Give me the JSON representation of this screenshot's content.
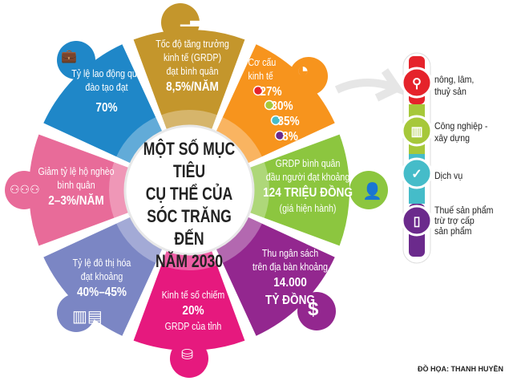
{
  "title": [
    "MỘT SỐ MỤC TIÊU",
    "CỤ THỂ CỦA",
    "SÓC TRĂNG ĐẾN",
    "NĂM 2030"
  ],
  "segments": [
    {
      "id": "growth",
      "color": "#c4962c",
      "lines": [
        "Tốc độ tăng trưởng",
        "kinh tế (GRDP)",
        "đạt bình quân"
      ],
      "value": "8,5%/NĂM",
      "icon": "bar-chart-icon"
    },
    {
      "id": "structure",
      "color": "#f7941d",
      "lines": [
        "Cơ cấu",
        "kinh tế"
      ],
      "values": [
        "27%",
        "30%",
        "35%",
        "8%"
      ],
      "icon": "pie-chart-icon"
    },
    {
      "id": "grdp-per-capita",
      "color": "#8cc63f",
      "lines": [
        "GRDP bình quân",
        "đầu người đạt khoảng"
      ],
      "value": "124 TRIỆU ĐỒNG",
      "note": "(giá hiện hành)",
      "icon": "person-icon"
    },
    {
      "id": "budget",
      "color": "#93278f",
      "lines": [
        "Thu ngân sách",
        "trên địa bàn khoảng"
      ],
      "value": "14.000",
      "value2": "TỶ ĐỒNG",
      "icon": "dollar-icon"
    },
    {
      "id": "digital-economy",
      "color": "#e6197e",
      "lines": [
        "Kinh tế số chiếm"
      ],
      "value": "20%",
      "note": "GRDP của tỉnh",
      "icon": "coins-icon"
    },
    {
      "id": "urbanization",
      "color": "#7b86c4",
      "lines": [
        "Tỷ lệ đô thị hóa",
        "đạt khoảng"
      ],
      "value": "40%–45%",
      "icon": "buildings-icon"
    },
    {
      "id": "poverty",
      "color": "#e86b99",
      "lines": [
        "Giảm tỷ lệ hộ nghèo",
        "bình quân"
      ],
      "value": "2–3%/NĂM",
      "icon": "people-icon"
    },
    {
      "id": "labor",
      "color": "#1f87c8",
      "lines": [
        "Tỷ lệ lao động qua",
        "đào tạo đạt"
      ],
      "value": "70%",
      "icon": "briefcase-icon"
    }
  ],
  "legend": [
    {
      "label": [
        "nông, lâm,",
        "thuỷ sản"
      ],
      "color": "#e5232b",
      "icon": "magnifier-icon"
    },
    {
      "label": [
        "Công nghiệp -",
        "xây dựng"
      ],
      "color": "#a6c83a",
      "icon": "factory-icon"
    },
    {
      "label": [
        "Dịch vụ"
      ],
      "color": "#45bcc9",
      "icon": "check-icon"
    },
    {
      "label": [
        "Thuế sản phẩm",
        "trừ trợ cấp",
        "sản phẩm"
      ],
      "color": "#6b2a8c",
      "icon": "notebook-icon"
    }
  ],
  "credit": "ĐỒ HỌA: THANH HUYỀN"
}
